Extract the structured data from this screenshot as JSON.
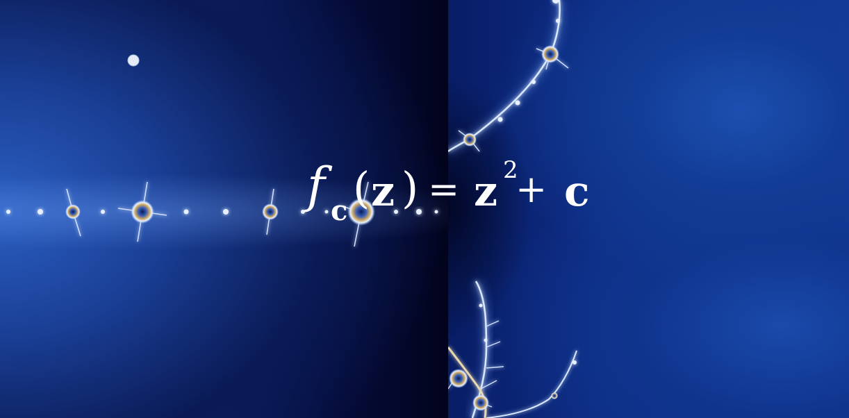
{
  "image": {
    "description_kind": "fractal",
    "left_panel": "mandelbrot-filament",
    "right_panel": "julia-set-arcs",
    "palette": {
      "deep": "#02031d",
      "mid": "#0c2a79",
      "bright": "#2b5fc2",
      "filament": "#cfe3ff",
      "gold": "#c8a25a"
    }
  },
  "formula": {
    "function": "f",
    "subscript": "c",
    "open_paren": "(",
    "variable": "z",
    "close_paren": ")",
    "equals": "=",
    "base": "z",
    "exponent": "2",
    "plus": "+",
    "constant": "c"
  }
}
